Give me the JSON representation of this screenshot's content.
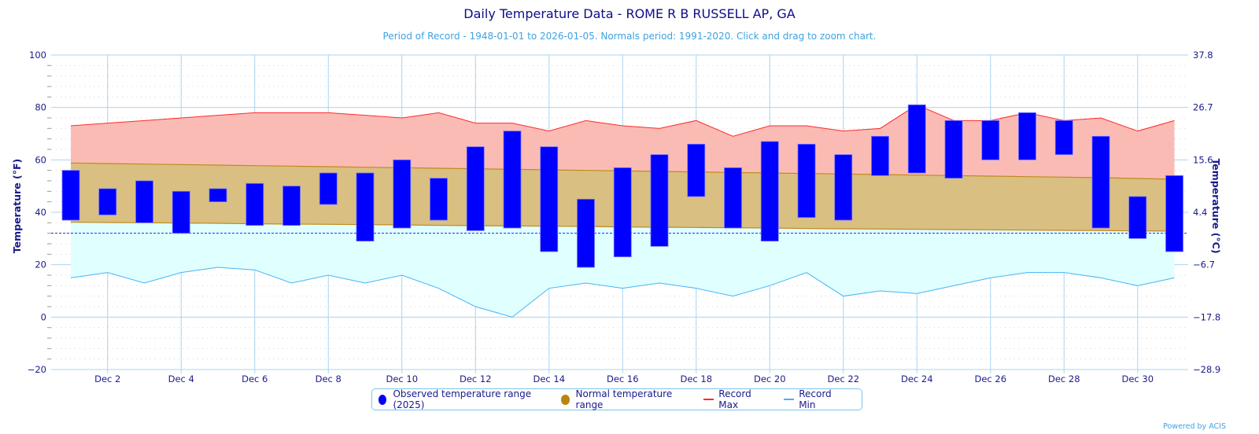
{
  "chart_data": {
    "type": "bar",
    "title": "Daily Temperature Data - ROME R B RUSSELL AP, GA",
    "subtitle": "Period of Record - 1948-01-01 to 2026-01-05. Normals period: 1991-2020. Click and drag to zoom chart.",
    "ylabel": "Temperature (°F)",
    "ylabel_right": "Temperature (°C)",
    "ylim": [
      -20,
      100
    ],
    "yticks": [
      "100",
      "80",
      "60",
      "40",
      "20",
      "0",
      "−20"
    ],
    "yticks_right": [
      "37.8",
      "26.7",
      "15.6",
      "4.4",
      "−6.7",
      "−17.8",
      "−28.9"
    ],
    "xticks": [
      "Dec 2",
      "Dec 4",
      "Dec 6",
      "Dec 8",
      "Dec 10",
      "Dec 12",
      "Dec 14",
      "Dec 16",
      "Dec 18",
      "Dec 20",
      "Dec 22",
      "Dec 24",
      "Dec 26",
      "Dec 28",
      "Dec 30"
    ],
    "days": [
      1,
      2,
      3,
      4,
      5,
      6,
      7,
      8,
      9,
      10,
      11,
      12,
      13,
      14,
      15,
      16,
      17,
      18,
      19,
      20,
      21,
      22,
      23,
      24,
      25,
      26,
      27,
      28,
      29,
      30,
      31
    ],
    "freezing_line": 32,
    "series": [
      {
        "name": "Observed temperature range (2025)",
        "color": "#0000ff",
        "high": [
          56,
          49,
          52,
          48,
          49,
          51,
          50,
          55,
          55,
          60,
          53,
          65,
          71,
          65,
          45,
          57,
          62,
          66,
          57,
          67,
          66,
          62,
          69,
          81,
          75,
          75,
          78,
          75,
          69,
          46,
          54
        ],
        "low": [
          37,
          39,
          36,
          32,
          44,
          35,
          35,
          43,
          29,
          34,
          37,
          33,
          34,
          25,
          19,
          23,
          27,
          46,
          34,
          29,
          38,
          37,
          54,
          55,
          53,
          60,
          60,
          62,
          34,
          30,
          25
        ]
      },
      {
        "name": "Normal temperature range",
        "color": "#b8860b",
        "high": [
          58.8,
          58.6,
          58.4,
          58.2,
          58.0,
          57.8,
          57.6,
          57.4,
          57.2,
          57.0,
          56.8,
          56.6,
          56.4,
          56.2,
          56.0,
          55.8,
          55.6,
          55.4,
          55.2,
          55.0,
          54.8,
          54.6,
          54.4,
          54.2,
          54.0,
          53.8,
          53.6,
          53.4,
          53.2,
          52.9,
          52.6
        ],
        "low": [
          36.2,
          36.1,
          36.0,
          35.9,
          35.8,
          35.6,
          35.5,
          35.4,
          35.3,
          35.2,
          35.0,
          34.9,
          34.8,
          34.7,
          34.6,
          34.4,
          34.3,
          34.2,
          34.1,
          34.0,
          33.8,
          33.7,
          33.6,
          33.5,
          33.4,
          33.3,
          33.2,
          33.1,
          33.0,
          32.9,
          32.8
        ]
      },
      {
        "name": "Record Max",
        "color": "#ff2a2a",
        "values": [
          73,
          74,
          75,
          76,
          77,
          78,
          78,
          78,
          77,
          76,
          78,
          74,
          74,
          71,
          75,
          73,
          72,
          75,
          69,
          73,
          73,
          71,
          72,
          81,
          75,
          75,
          78,
          75,
          76,
          71,
          75
        ]
      },
      {
        "name": "Record Min",
        "color": "#45b4f5",
        "values": [
          15,
          17,
          13,
          17,
          19,
          18,
          13,
          16,
          13,
          16,
          11,
          4,
          0,
          11,
          13,
          11,
          13,
          11,
          8,
          12,
          17,
          8,
          10,
          9,
          12,
          15,
          17,
          17,
          15,
          12,
          15
        ]
      }
    ],
    "legend_position": "bottom-center"
  },
  "credit": "Powered by ACIS"
}
